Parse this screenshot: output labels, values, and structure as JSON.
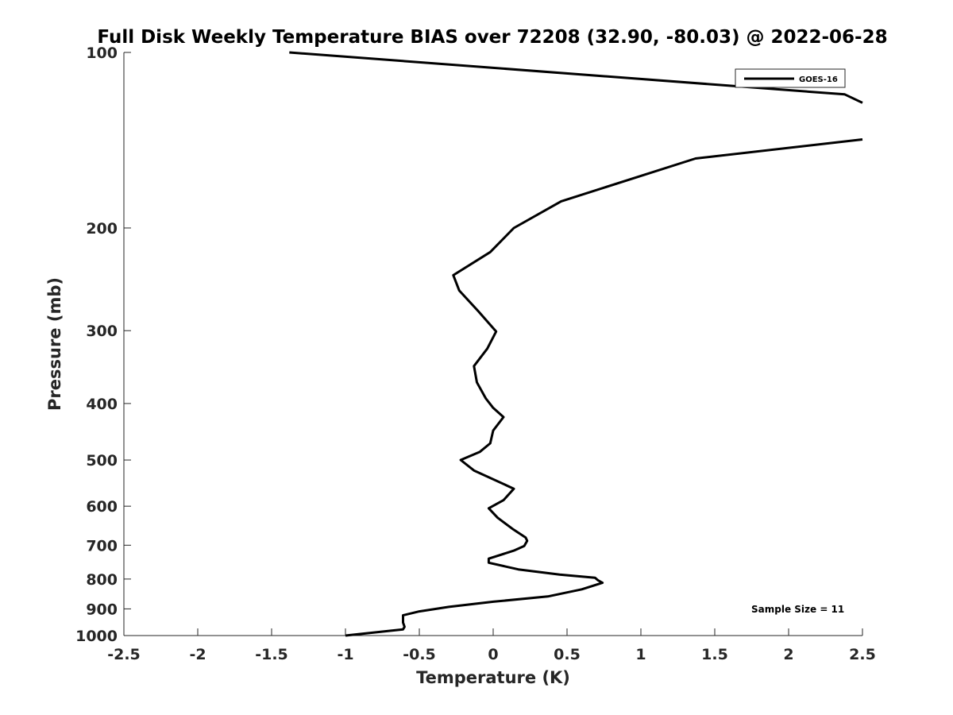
{
  "chart_data": {
    "type": "line",
    "title": "Full Disk Weekly Temperature BIAS over 72208 (32.90, -80.03) @ 2022-06-28",
    "xlabel": "Temperature (K)",
    "ylabel": "Pressure (mb)",
    "xlim": [
      -2.5,
      2.5
    ],
    "ylim": [
      1000,
      100
    ],
    "yscale": "log",
    "xticks": [
      -2.5,
      -2,
      -1.5,
      -1,
      -0.5,
      0,
      0.5,
      1,
      1.5,
      2,
      2.5
    ],
    "xtick_labels": [
      "-2.5",
      "-2",
      "-1.5",
      "-1",
      "-0.5",
      "0",
      "0.5",
      "1",
      "1.5",
      "2",
      "2.5"
    ],
    "yticks": [
      100,
      200,
      300,
      400,
      500,
      600,
      700,
      800,
      900,
      1000
    ],
    "ytick_labels": [
      "100",
      "200",
      "300",
      "400",
      "500",
      "600",
      "700",
      "800",
      "900",
      "1000"
    ],
    "grid": false,
    "legend_position": "top-right",
    "annotation": "Sample Size = 11",
    "series": [
      {
        "name": "GOES-16",
        "color": "#000000",
        "segments": [
          [
            {
              "x": -1.38,
              "y": 100
            },
            {
              "x": 2.38,
              "y": 118
            },
            {
              "x": 2.5,
              "y": 122
            }
          ],
          [
            {
              "x": 2.5,
              "y": 141
            },
            {
              "x": 1.37,
              "y": 152
            },
            {
              "x": 0.46,
              "y": 180
            },
            {
              "x": 0.14,
              "y": 200
            },
            {
              "x": -0.02,
              "y": 220
            },
            {
              "x": -0.27,
              "y": 241
            },
            {
              "x": -0.23,
              "y": 256
            },
            {
              "x": -0.1,
              "y": 278
            },
            {
              "x": 0.02,
              "y": 301
            },
            {
              "x": -0.04,
              "y": 322
            },
            {
              "x": -0.13,
              "y": 345
            },
            {
              "x": -0.11,
              "y": 368
            },
            {
              "x": -0.05,
              "y": 392
            },
            {
              "x": 0.0,
              "y": 407
            },
            {
              "x": 0.07,
              "y": 422
            },
            {
              "x": 0.0,
              "y": 445
            },
            {
              "x": -0.02,
              "y": 468
            },
            {
              "x": -0.09,
              "y": 484
            },
            {
              "x": -0.22,
              "y": 500
            },
            {
              "x": -0.13,
              "y": 521
            },
            {
              "x": 0.14,
              "y": 560
            },
            {
              "x": 0.07,
              "y": 586
            },
            {
              "x": -0.03,
              "y": 605
            },
            {
              "x": 0.03,
              "y": 628
            },
            {
              "x": 0.13,
              "y": 656
            },
            {
              "x": 0.22,
              "y": 679
            },
            {
              "x": 0.23,
              "y": 688
            },
            {
              "x": 0.21,
              "y": 702
            },
            {
              "x": 0.14,
              "y": 715
            },
            {
              "x": -0.03,
              "y": 738
            },
            {
              "x": -0.03,
              "y": 750
            },
            {
              "x": 0.17,
              "y": 770
            },
            {
              "x": 0.45,
              "y": 786
            },
            {
              "x": 0.69,
              "y": 796
            },
            {
              "x": 0.71,
              "y": 804
            },
            {
              "x": 0.74,
              "y": 812
            },
            {
              "x": 0.6,
              "y": 833
            },
            {
              "x": 0.37,
              "y": 857
            },
            {
              "x": 0.0,
              "y": 875
            },
            {
              "x": -0.3,
              "y": 893
            },
            {
              "x": -0.5,
              "y": 909
            },
            {
              "x": -0.61,
              "y": 923
            },
            {
              "x": -0.61,
              "y": 950
            },
            {
              "x": -0.6,
              "y": 966
            },
            {
              "x": -0.61,
              "y": 976
            },
            {
              "x": -1.0,
              "y": 1000
            }
          ]
        ]
      }
    ]
  }
}
